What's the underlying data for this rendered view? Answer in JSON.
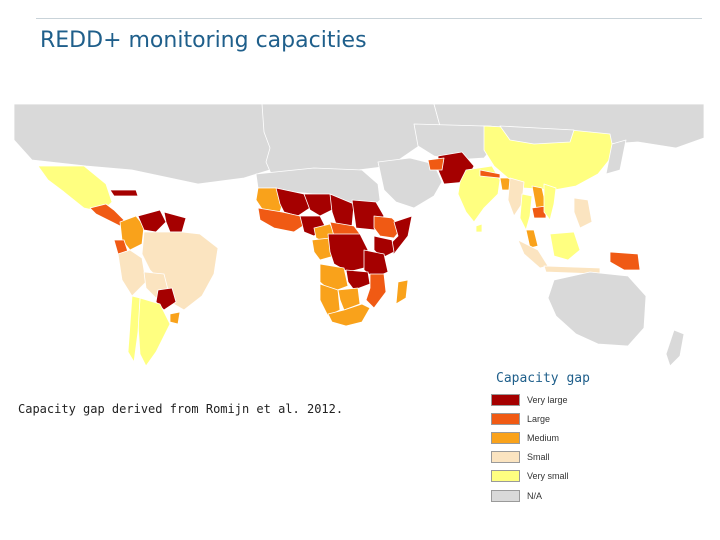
{
  "slide": {
    "title": "REDD+ monitoring capacities",
    "caption": "Capacity gap derived from Romijn et al. 2012."
  },
  "colors": {
    "title_blue": "#1f5f8b",
    "ocean": "#ffffff",
    "land_outline": "#ffffff"
  },
  "legend": {
    "title": "Capacity gap",
    "items": [
      {
        "key": "very_large",
        "label": "Very large",
        "color": "#a50000"
      },
      {
        "key": "large",
        "label": "Large",
        "color": "#f05a14"
      },
      {
        "key": "medium",
        "label": "Medium",
        "color": "#f9a21b"
      },
      {
        "key": "small",
        "label": "Small",
        "color": "#fbe4c0"
      },
      {
        "key": "very_small",
        "label": "Very small",
        "color": "#ffff80"
      },
      {
        "key": "na",
        "label": "N/A",
        "color": "#d9d9d9"
      }
    ]
  },
  "map": {
    "regions": [
      {
        "name": "North America",
        "category": "na"
      },
      {
        "name": "Greenland",
        "category": "na"
      },
      {
        "name": "Mexico",
        "category": "very_small"
      },
      {
        "name": "Central America",
        "category": "large"
      },
      {
        "name": "Cuba",
        "category": "very_large"
      },
      {
        "name": "Colombia",
        "category": "medium"
      },
      {
        "name": "Venezuela",
        "category": "very_large"
      },
      {
        "name": "Guianas",
        "category": "very_large"
      },
      {
        "name": "Ecuador",
        "category": "large"
      },
      {
        "name": "Peru",
        "category": "small"
      },
      {
        "name": "Brazil",
        "category": "small"
      },
      {
        "name": "Bolivia",
        "category": "small"
      },
      {
        "name": "Paraguay",
        "category": "very_large"
      },
      {
        "name": "Uruguay",
        "category": "medium"
      },
      {
        "name": "Argentina",
        "category": "very_small"
      },
      {
        "name": "Chile",
        "category": "very_small"
      },
      {
        "name": "Europe",
        "category": "na"
      },
      {
        "name": "Russia",
        "category": "na"
      },
      {
        "name": "North Africa",
        "category": "na"
      },
      {
        "name": "Mauritania",
        "category": "medium"
      },
      {
        "name": "Mali",
        "category": "very_large"
      },
      {
        "name": "Niger",
        "category": "very_large"
      },
      {
        "name": "Chad",
        "category": "very_large"
      },
      {
        "name": "Sudan",
        "category": "very_large"
      },
      {
        "name": "Ethiopia",
        "category": "large"
      },
      {
        "name": "Somalia",
        "category": "very_large"
      },
      {
        "name": "West Africa coast",
        "category": "large"
      },
      {
        "name": "Nigeria",
        "category": "very_large"
      },
      {
        "name": "Cameroon",
        "category": "medium"
      },
      {
        "name": "Central African Republic",
        "category": "large"
      },
      {
        "name": "Gabon & Congo",
        "category": "medium"
      },
      {
        "name": "DR Congo",
        "category": "very_large"
      },
      {
        "name": "Kenya",
        "category": "very_large"
      },
      {
        "name": "Tanzania",
        "category": "very_large"
      },
      {
        "name": "Angola",
        "category": "medium"
      },
      {
        "name": "Zambia",
        "category": "very_large"
      },
      {
        "name": "Mozambique",
        "category": "large"
      },
      {
        "name": "Namibia",
        "category": "medium"
      },
      {
        "name": "Botswana",
        "category": "medium"
      },
      {
        "name": "South Africa",
        "category": "medium"
      },
      {
        "name": "Madagascar",
        "category": "medium"
      },
      {
        "name": "Middle East",
        "category": "na"
      },
      {
        "name": "Central Asia",
        "category": "na"
      },
      {
        "name": "Pakistan",
        "category": "very_large"
      },
      {
        "name": "Afghanistan",
        "category": "large"
      },
      {
        "name": "India",
        "category": "very_small"
      },
      {
        "name": "Sri Lanka",
        "category": "very_small"
      },
      {
        "name": "Nepal & Bhutan",
        "category": "large"
      },
      {
        "name": "Bangladesh",
        "category": "medium"
      },
      {
        "name": "China",
        "category": "very_small"
      },
      {
        "name": "Mongolia",
        "category": "na"
      },
      {
        "name": "Japan",
        "category": "na"
      },
      {
        "name": "Myanmar",
        "category": "small"
      },
      {
        "name": "Thailand",
        "category": "very_small"
      },
      {
        "name": "Laos",
        "category": "medium"
      },
      {
        "name": "Cambodia",
        "category": "large"
      },
      {
        "name": "Vietnam",
        "category": "very_small"
      },
      {
        "name": "Malaysia",
        "category": "medium"
      },
      {
        "name": "Sumatra",
        "category": "small"
      },
      {
        "name": "Borneo",
        "category": "very_small"
      },
      {
        "name": "Sulawesi & Java",
        "category": "small"
      },
      {
        "name": "Philippines",
        "category": "small"
      },
      {
        "name": "Papua New Guinea",
        "category": "large"
      },
      {
        "name": "Australia",
        "category": "na"
      },
      {
        "name": "New Zealand",
        "category": "na"
      }
    ]
  }
}
